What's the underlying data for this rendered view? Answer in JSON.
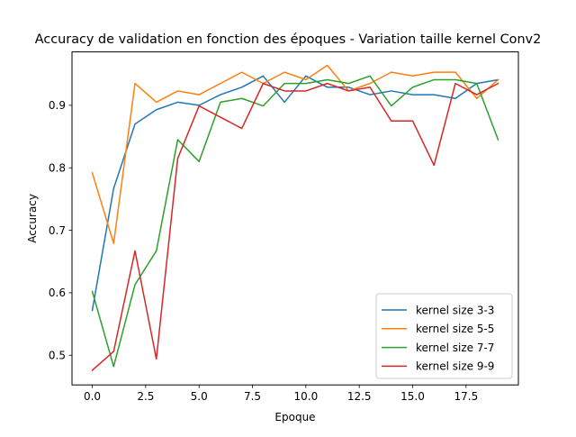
{
  "chart_data": {
    "type": "line",
    "title": "Accuracy de validation en fonction des époques - Variation taille kernel Conv2",
    "xlabel": "Epoque",
    "ylabel": "Accuracy",
    "xlim": [
      -0.95,
      19.95
    ],
    "ylim": [
      0.4525,
      0.9855
    ],
    "xticks": [
      0.0,
      2.5,
      5.0,
      7.5,
      10.0,
      12.5,
      15.0,
      17.5
    ],
    "xtick_labels": [
      "0.0",
      "2.5",
      "5.0",
      "7.5",
      "10.0",
      "12.5",
      "15.0",
      "17.5"
    ],
    "yticks": [
      0.5,
      0.6,
      0.7,
      0.8,
      0.9
    ],
    "ytick_labels": [
      "0.5",
      "0.6",
      "0.7",
      "0.8",
      "0.9"
    ],
    "grid": false,
    "legend_position": "bottom-right",
    "x": [
      0,
      1,
      2,
      3,
      4,
      5,
      6,
      7,
      8,
      9,
      10,
      11,
      12,
      13,
      14,
      15,
      16,
      17,
      18,
      19
    ],
    "series": [
      {
        "name": "kernel size 3-3",
        "color": "#1f77b4",
        "values": [
          0.572,
          0.767,
          0.87,
          0.893,
          0.905,
          0.9,
          0.917,
          0.929,
          0.947,
          0.905,
          0.947,
          0.929,
          0.929,
          0.917,
          0.923,
          0.917,
          0.917,
          0.911,
          0.935,
          0.941
        ]
      },
      {
        "name": "kernel size 5-5",
        "color": "#ff7f0e",
        "values": [
          0.792,
          0.679,
          0.935,
          0.905,
          0.923,
          0.917,
          0.935,
          0.953,
          0.935,
          0.953,
          0.941,
          0.964,
          0.923,
          0.935,
          0.953,
          0.947,
          0.953,
          0.953,
          0.911,
          0.941
        ]
      },
      {
        "name": "kernel size 7-7",
        "color": "#2ca02c",
        "values": [
          0.602,
          0.482,
          0.613,
          0.667,
          0.845,
          0.81,
          0.905,
          0.911,
          0.899,
          0.935,
          0.935,
          0.941,
          0.935,
          0.947,
          0.899,
          0.929,
          0.941,
          0.941,
          0.935,
          0.845
        ]
      },
      {
        "name": "kernel size 9-9",
        "color": "#d62728",
        "values": [
          0.476,
          0.506,
          0.667,
          0.494,
          0.815,
          0.899,
          0.881,
          0.863,
          0.935,
          0.923,
          0.923,
          0.935,
          0.923,
          0.929,
          0.875,
          0.875,
          0.804,
          0.935,
          0.917,
          0.935
        ]
      }
    ]
  }
}
